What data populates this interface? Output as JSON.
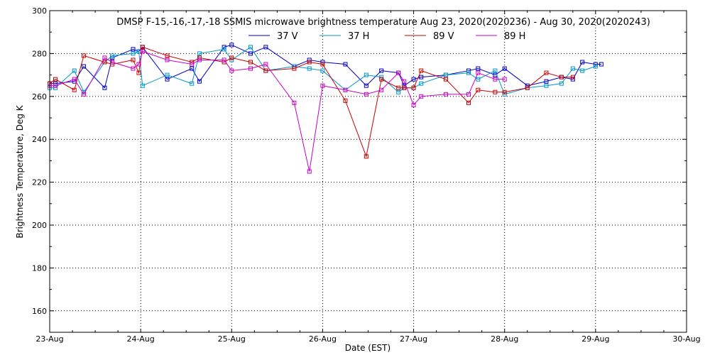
{
  "chart_data": {
    "type": "line",
    "title": "DMSP F-15,-16,-17,-18 SSMIS microwave brightness temperature Aug 23, 2020(2020236) - Aug 30, 2020(2020243)",
    "xlabel": "Date (EST)",
    "ylabel": "Brightness Temperature, Deg K",
    "x_ticks": [
      "23-Aug",
      "24-Aug",
      "25-Aug",
      "26-Aug",
      "27-Aug",
      "28-Aug",
      "29-Aug",
      "30-Aug"
    ],
    "xlim": [
      "2020-08-23",
      "2020-08-30"
    ],
    "ylim": [
      150,
      300
    ],
    "y_ticks": [
      160,
      180,
      200,
      220,
      240,
      260,
      280,
      300
    ],
    "grid": true,
    "legend_position": "top-center",
    "series": [
      {
        "name": "37 V",
        "color": "#0000c8",
        "x": [
          "2020-08-23 00:00",
          "2020-08-23 01:30",
          "2020-08-23 06:30",
          "2020-08-23 09:00",
          "2020-08-23 14:30",
          "2020-08-23 16:30",
          "2020-08-23 22:00",
          "2020-08-23 23:30",
          "2020-08-24 00:30",
          "2020-08-24 07:00",
          "2020-08-24 13:30",
          "2020-08-24 15:30",
          "2020-08-24 22:00",
          "2020-08-25 00:00",
          "2020-08-25 05:00",
          "2020-08-25 09:00",
          "2020-08-25 16:30",
          "2020-08-25 20:30",
          "2020-08-26 00:00",
          "2020-08-26 06:00",
          "2020-08-26 11:30",
          "2020-08-26 15:30",
          "2020-08-26 20:00",
          "2020-08-26 21:30",
          "2020-08-27 00:00",
          "2020-08-27 02:00",
          "2020-08-27 08:30",
          "2020-08-27 14:30",
          "2020-08-27 17:00",
          "2020-08-27 21:30",
          "2020-08-28 00:00",
          "2020-08-28 06:00",
          "2020-08-28 11:00",
          "2020-08-28 15:00",
          "2020-08-28 18:00",
          "2020-08-28 20:30",
          "2020-08-29 00:00",
          "2020-08-29 01:30",
          "2020-08-29 06:30",
          "2020-08-29 08:30",
          "2020-08-29 16:00",
          "2020-08-29 20:30",
          "2020-08-30 00:00",
          "2020-08-30 02:30"
        ],
        "values": [
          266,
          266,
          267,
          274,
          264,
          278,
          282,
          281,
          283,
          268,
          273,
          267,
          283,
          284,
          280,
          283,
          274,
          277,
          276,
          275,
          265,
          272,
          271,
          265,
          268,
          269,
          270,
          272,
          273,
          270,
          273,
          265,
          267,
          269,
          268,
          276,
          275,
          275,
          null,
          null,
          null,
          null,
          null,
          null
        ]
      },
      {
        "name": "37 H",
        "color": "#0096c8",
        "x": [
          "2020-08-23 00:00",
          "2020-08-23 01:30",
          "2020-08-23 06:30",
          "2020-08-23 09:00",
          "2020-08-23 14:30",
          "2020-08-23 16:30",
          "2020-08-23 22:00",
          "2020-08-23 23:30",
          "2020-08-24 00:30",
          "2020-08-24 07:00",
          "2020-08-24 13:30",
          "2020-08-24 15:30",
          "2020-08-24 22:00",
          "2020-08-25 00:00",
          "2020-08-25 05:00",
          "2020-08-25 09:00",
          "2020-08-25 16:30",
          "2020-08-25 20:30",
          "2020-08-26 00:00",
          "2020-08-26 06:00",
          "2020-08-26 11:30",
          "2020-08-26 15:30",
          "2020-08-26 20:00",
          "2020-08-26 21:30",
          "2020-08-27 00:00",
          "2020-08-27 02:00",
          "2020-08-27 08:30",
          "2020-08-27 14:30",
          "2020-08-27 17:00",
          "2020-08-27 21:30",
          "2020-08-28 00:00",
          "2020-08-28 06:00",
          "2020-08-28 11:00",
          "2020-08-28 15:00",
          "2020-08-28 18:00",
          "2020-08-28 20:30",
          "2020-08-29 00:00",
          "2020-08-29 01:30",
          "2020-08-29 06:30",
          "2020-08-29 08:30",
          "2020-08-29 16:00",
          "2020-08-29 20:30",
          "2020-08-30 00:00",
          "2020-08-30 02:30"
        ],
        "values": [
          264,
          264,
          272,
          262,
          276,
          279,
          280,
          281,
          265,
          270,
          266,
          280,
          282,
          277,
          283,
          272,
          274,
          273,
          272,
          263,
          270,
          269,
          262,
          264,
          264,
          266,
          270,
          271,
          268,
          272,
          261,
          264,
          265,
          266,
          273,
          272,
          274,
          null,
          null,
          null,
          null,
          null,
          null,
          null
        ]
      },
      {
        "name": "89 V",
        "color": "#c80000",
        "x": [
          "2020-08-23 00:00",
          "2020-08-23 01:30",
          "2020-08-23 06:30",
          "2020-08-23 09:00",
          "2020-08-23 14:30",
          "2020-08-23 16:30",
          "2020-08-23 22:00",
          "2020-08-23 23:30",
          "2020-08-24 00:30",
          "2020-08-24 07:00",
          "2020-08-24 13:30",
          "2020-08-24 15:30",
          "2020-08-24 22:00",
          "2020-08-25 00:00",
          "2020-08-25 05:00",
          "2020-08-25 09:00",
          "2020-08-25 16:30",
          "2020-08-25 20:30",
          "2020-08-26 00:00",
          "2020-08-26 06:00",
          "2020-08-26 11:30",
          "2020-08-26 15:30",
          "2020-08-26 20:00",
          "2020-08-26 21:30",
          "2020-08-27 00:00",
          "2020-08-27 02:00",
          "2020-08-27 08:30",
          "2020-08-27 14:30",
          "2020-08-27 17:00",
          "2020-08-27 21:30",
          "2020-08-28 00:00",
          "2020-08-28 06:00",
          "2020-08-28 11:00",
          "2020-08-28 15:00",
          "2020-08-28 18:00",
          "2020-08-28 20:30",
          "2020-08-29 00:00",
          "2020-08-29 01:30",
          "2020-08-29 06:30",
          "2020-08-29 08:30",
          "2020-08-29 16:00",
          "2020-08-29 20:30",
          "2020-08-30 00:00",
          "2020-08-30 02:30"
        ],
        "values": [
          266,
          268,
          263,
          279,
          276,
          275,
          277,
          271,
          283,
          279,
          276,
          278,
          276,
          278,
          276,
          272,
          273,
          276,
          275,
          258,
          232,
          268,
          264,
          264,
          264,
          272,
          268,
          257,
          263,
          262,
          262,
          264,
          271,
          269,
          269,
          null,
          null,
          null,
          null,
          null,
          null,
          null,
          null,
          null
        ]
      },
      {
        "name": "89 H",
        "color": "#c800c8",
        "x": [
          "2020-08-23 00:00",
          "2020-08-23 01:30",
          "2020-08-23 06:30",
          "2020-08-23 09:00",
          "2020-08-23 14:30",
          "2020-08-23 16:30",
          "2020-08-23 22:00",
          "2020-08-23 23:30",
          "2020-08-24 00:30",
          "2020-08-24 07:00",
          "2020-08-24 13:30",
          "2020-08-24 15:30",
          "2020-08-24 22:00",
          "2020-08-25 00:00",
          "2020-08-25 05:00",
          "2020-08-25 09:00",
          "2020-08-25 16:30",
          "2020-08-25 20:30",
          "2020-08-26 00:00",
          "2020-08-26 06:00",
          "2020-08-26 11:30",
          "2020-08-26 15:30",
          "2020-08-26 20:00",
          "2020-08-26 21:30",
          "2020-08-27 00:00",
          "2020-08-27 02:00",
          "2020-08-27 08:30",
          "2020-08-27 14:30",
          "2020-08-27 17:00",
          "2020-08-27 21:30",
          "2020-08-28 00:00",
          "2020-08-28 06:00",
          "2020-08-28 11:00",
          "2020-08-28 15:00",
          "2020-08-28 18:00",
          "2020-08-28 20:30",
          "2020-08-29 00:00",
          "2020-08-29 01:30",
          "2020-08-29 06:30",
          "2020-08-29 08:30",
          "2020-08-29 16:00",
          "2020-08-29 20:30",
          "2020-08-30 00:00",
          "2020-08-30 02:30"
        ],
        "values": [
          265,
          265,
          268,
          261,
          278,
          276,
          273,
          275,
          281,
          277,
          275,
          277,
          277,
          272,
          273,
          275,
          257,
          225,
          265,
          263,
          261,
          263,
          271,
          267,
          256,
          260,
          261,
          261,
          271,
          268,
          268,
          null,
          null,
          null,
          null,
          null,
          null,
          null,
          null,
          null,
          null,
          null,
          null,
          null
        ]
      }
    ]
  }
}
